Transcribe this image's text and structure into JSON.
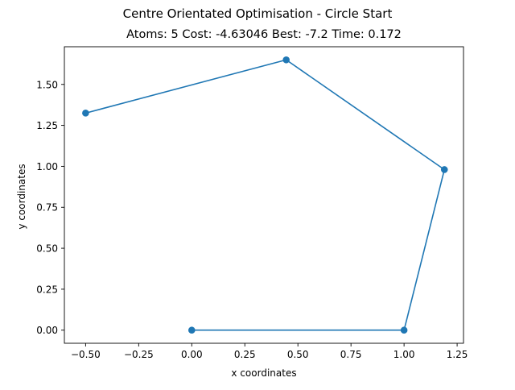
{
  "figure": {
    "suptitle": "Centre Orientated Optimisation - Circle Start",
    "title": "Atoms: 5 Cost: -4.63046 Best: -7.2 Time: 0.172"
  },
  "chart_data": {
    "type": "line",
    "title": "Atoms: 5 Cost: -4.63046 Best: -7.2 Time: 0.172",
    "xlabel": "x coordinates",
    "ylabel": "y coordinates",
    "xlim": [
      -0.6,
      1.28
    ],
    "ylim": [
      -0.08,
      1.73
    ],
    "xticks": [
      -0.5,
      -0.25,
      0.0,
      0.25,
      0.5,
      0.75,
      1.0,
      1.25
    ],
    "xtick_labels": [
      "−0.50",
      "−0.25",
      "0.00",
      "0.25",
      "0.50",
      "0.75",
      "1.00",
      "1.25"
    ],
    "yticks": [
      0.0,
      0.25,
      0.5,
      0.75,
      1.0,
      1.25,
      1.5
    ],
    "ytick_labels": [
      "0.00",
      "0.25",
      "0.50",
      "0.75",
      "1.00",
      "1.25",
      "1.50"
    ],
    "grid": false,
    "series": [
      {
        "color": "#1f77b4",
        "marker": "circle",
        "x": [
          0.0,
          1.0,
          1.19,
          0.445,
          -0.5
        ],
        "y": [
          0.0,
          0.0,
          0.98,
          1.65,
          1.325
        ]
      }
    ]
  }
}
